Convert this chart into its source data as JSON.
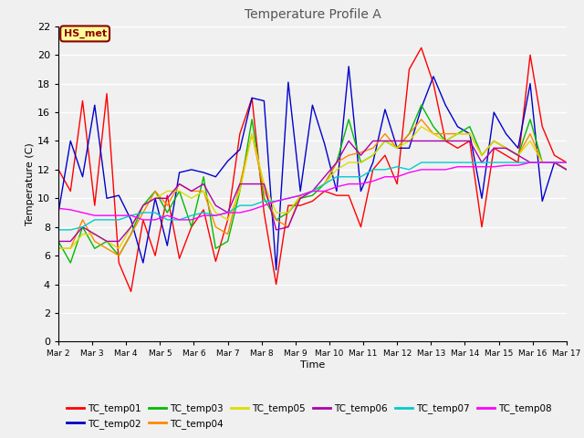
{
  "title": "Temperature Profile A",
  "xlabel": "Time",
  "ylabel": "Temperature (C)",
  "ylim": [
    0,
    22
  ],
  "background_color": "#f0f0f0",
  "plot_bg_color": "#f0f0f0",
  "annotation_text": "HS_met",
  "annotation_bg": "#ffff99",
  "annotation_border": "#8B0000",
  "series_colors": {
    "TC_temp01": "#ff0000",
    "TC_temp02": "#0000cc",
    "TC_temp03": "#00bb00",
    "TC_temp04": "#ff8800",
    "TC_temp05": "#dddd00",
    "TC_temp06": "#aa00aa",
    "TC_temp07": "#00cccc",
    "TC_temp08": "#ff00ff"
  },
  "x_ticks": [
    2,
    3,
    4,
    5,
    6,
    7,
    8,
    9,
    10,
    11,
    12,
    13,
    14,
    15,
    16,
    17
  ],
  "x_tick_labels": [
    "Mar 2",
    "Mar 3",
    "Mar 4",
    "Mar 5",
    "Mar 6",
    "Mar 7",
    "Mar 8",
    "Mar 9",
    "Mar 10",
    "Mar 11",
    "Mar 12",
    "Mar 13",
    "Mar 14",
    "Mar 15",
    "Mar 16",
    "Mar 17"
  ],
  "TC_temp01": [
    12.0,
    10.5,
    16.8,
    9.5,
    17.3,
    5.5,
    3.5,
    8.5,
    6.0,
    10.2,
    5.8,
    8.0,
    9.2,
    5.6,
    8.5,
    14.5,
    17.0,
    9.0,
    4.0,
    9.5,
    9.5,
    9.8,
    10.5,
    10.2,
    10.2,
    8.0,
    12.0,
    13.0,
    11.0,
    19.0,
    20.5,
    18.0,
    14.0,
    13.5,
    14.0,
    8.0,
    13.5,
    13.0,
    12.5,
    20.0,
    15.0,
    13.0,
    12.5
  ],
  "TC_temp02": [
    9.0,
    14.0,
    11.5,
    16.5,
    10.0,
    10.2,
    8.5,
    5.5,
    10.0,
    6.7,
    11.8,
    12.0,
    11.8,
    11.5,
    12.6,
    13.4,
    17.0,
    16.8,
    5.0,
    18.1,
    10.5,
    16.5,
    13.8,
    10.5,
    19.2,
    10.5,
    12.5,
    16.2,
    13.5,
    13.5,
    16.3,
    18.5,
    16.5,
    15.0,
    14.5,
    10.0,
    16.0,
    14.5,
    13.5,
    18.0,
    9.8,
    12.5,
    12.0
  ],
  "TC_temp03": [
    7.0,
    5.5,
    8.0,
    6.5,
    7.0,
    6.0,
    7.5,
    9.5,
    10.5,
    9.0,
    10.5,
    8.0,
    11.5,
    6.5,
    7.0,
    10.5,
    15.5,
    10.0,
    8.5,
    9.0,
    10.0,
    10.2,
    11.0,
    12.5,
    15.5,
    12.5,
    13.0,
    14.0,
    13.5,
    14.5,
    16.5,
    15.0,
    14.0,
    14.5,
    15.0,
    13.0,
    14.0,
    13.5,
    13.0,
    15.5,
    12.5,
    12.5,
    12.0
  ],
  "TC_temp04": [
    6.5,
    6.5,
    8.5,
    7.0,
    6.5,
    6.0,
    7.5,
    9.0,
    10.5,
    9.5,
    11.0,
    10.5,
    10.5,
    8.0,
    7.5,
    11.0,
    14.5,
    10.5,
    8.5,
    8.0,
    10.2,
    10.5,
    11.0,
    12.5,
    13.0,
    13.2,
    13.5,
    14.5,
    13.5,
    14.5,
    15.5,
    14.5,
    14.5,
    14.5,
    14.5,
    13.0,
    14.0,
    13.5,
    13.0,
    14.5,
    12.5,
    12.5,
    12.0
  ],
  "TC_temp05": [
    6.5,
    6.5,
    7.5,
    7.5,
    7.0,
    6.5,
    8.0,
    9.5,
    10.0,
    10.5,
    10.5,
    10.0,
    10.5,
    9.0,
    8.5,
    10.5,
    14.5,
    11.0,
    9.0,
    9.0,
    10.2,
    10.5,
    11.0,
    12.0,
    12.5,
    12.5,
    13.0,
    14.0,
    13.5,
    14.0,
    15.0,
    14.5,
    14.0,
    14.5,
    14.5,
    13.0,
    14.0,
    13.5,
    13.0,
    14.0,
    12.5,
    12.5,
    12.0
  ],
  "TC_temp06": [
    7.0,
    7.0,
    8.0,
    7.5,
    7.0,
    7.0,
    8.0,
    9.5,
    10.0,
    10.0,
    11.0,
    10.5,
    11.0,
    9.5,
    9.0,
    11.0,
    11.0,
    11.0,
    7.8,
    8.0,
    10.0,
    10.5,
    11.5,
    12.5,
    14.0,
    13.0,
    14.0,
    14.0,
    14.0,
    14.0,
    14.0,
    14.0,
    14.0,
    14.0,
    14.0,
    12.5,
    13.5,
    13.5,
    13.0,
    12.5,
    12.5,
    12.5,
    12.0
  ],
  "TC_temp07": [
    7.8,
    7.8,
    8.0,
    8.5,
    8.5,
    8.5,
    8.8,
    9.0,
    9.0,
    8.5,
    8.5,
    8.8,
    9.0,
    8.8,
    9.0,
    9.5,
    9.5,
    9.8,
    9.8,
    10.0,
    10.2,
    10.5,
    11.0,
    11.5,
    11.5,
    11.5,
    12.0,
    12.0,
    12.2,
    12.0,
    12.5,
    12.5,
    12.5,
    12.5,
    12.5,
    12.5,
    12.5,
    12.5,
    12.5,
    12.5,
    12.5,
    12.5,
    12.5
  ],
  "TC_temp08": [
    9.3,
    9.2,
    9.0,
    8.8,
    8.8,
    8.8,
    8.8,
    8.5,
    8.5,
    8.8,
    8.5,
    8.5,
    8.8,
    8.8,
    9.0,
    9.0,
    9.2,
    9.5,
    9.8,
    10.0,
    10.2,
    10.5,
    10.5,
    10.8,
    11.0,
    11.0,
    11.2,
    11.5,
    11.5,
    11.8,
    12.0,
    12.0,
    12.0,
    12.2,
    12.2,
    12.2,
    12.2,
    12.3,
    12.3,
    12.5,
    12.5,
    12.5,
    12.5
  ]
}
